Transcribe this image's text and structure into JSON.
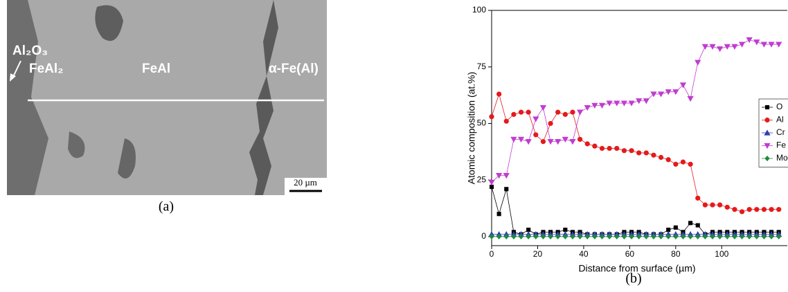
{
  "micrograph": {
    "labels": [
      "Al₂O₃",
      "FeAl₂",
      "FeAl",
      "α-Fe(Al)"
    ],
    "scale_bar": "20 µm",
    "caption": "(a)"
  },
  "chart_data": {
    "type": "line",
    "caption": "(b)",
    "x_label": "Distance from surface (µm)",
    "y_label": "Atomic composition (at.%)",
    "x": [
      0,
      3.2,
      6.4,
      9.6,
      12.8,
      16,
      19.2,
      22.4,
      25.6,
      28.8,
      32,
      35.2,
      38.4,
      41.6,
      44.8,
      48,
      51.2,
      54.4,
      57.6,
      60.8,
      64,
      67.2,
      70.4,
      73.6,
      76.8,
      80,
      83.2,
      86.4,
      89.6,
      92.8,
      96,
      99.2,
      102.4,
      105.6,
      108.8,
      112,
      115.2,
      118.4,
      121.6,
      124.8
    ],
    "series": [
      {
        "name": "O",
        "color": "#000000",
        "marker": "square",
        "values": [
          22,
          10,
          21,
          2,
          1,
          3,
          1,
          2,
          2,
          2,
          3,
          2,
          2,
          1,
          1,
          1,
          1,
          1,
          2,
          2,
          2,
          1,
          1,
          1,
          3,
          4,
          2,
          6,
          5,
          1,
          2,
          2,
          2,
          2,
          2,
          2,
          2,
          2,
          2,
          2
        ]
      },
      {
        "name": "Al",
        "color": "#e41a1c",
        "marker": "circle",
        "values": [
          53,
          63,
          51,
          54,
          55,
          55,
          45,
          42,
          50,
          55,
          54,
          55,
          43,
          41,
          40,
          39,
          39,
          39,
          38,
          38,
          37,
          37,
          36,
          35,
          34,
          32,
          33,
          32,
          17,
          14,
          14,
          14,
          13,
          12,
          11,
          12,
          12,
          12,
          12,
          12
        ]
      },
      {
        "name": "Cr",
        "color": "#2b3fb0",
        "marker": "triangle-up",
        "values": [
          1,
          1,
          1,
          1,
          1,
          1,
          1,
          1,
          1,
          1,
          1,
          1,
          1,
          1,
          1,
          1,
          1,
          1,
          1,
          1,
          1,
          1,
          1,
          1,
          1,
          1,
          1,
          1,
          1,
          1,
          1,
          1,
          1,
          1,
          1,
          1,
          1,
          1,
          1,
          1
        ]
      },
      {
        "name": "Fe",
        "color": "#c03ccf",
        "marker": "triangle-down",
        "values": [
          24,
          27,
          27,
          43,
          43,
          42,
          52,
          57,
          42,
          42,
          43,
          42,
          55,
          57,
          58,
          58,
          59,
          59,
          59,
          59,
          60,
          60,
          63,
          63,
          64,
          64,
          67,
          61,
          77,
          84,
          84,
          83,
          84,
          84,
          85,
          87,
          86,
          85,
          85,
          85
        ]
      },
      {
        "name": "Mo",
        "color": "#1f8a3a",
        "marker": "diamond",
        "values": [
          0,
          0,
          0,
          0,
          0,
          0,
          0,
          0,
          0,
          0,
          0,
          0,
          0,
          0,
          0,
          0,
          0,
          0,
          0,
          0,
          0,
          0,
          0,
          0,
          0,
          0,
          0,
          0,
          0,
          0,
          0,
          0,
          0,
          0,
          0,
          0,
          0,
          0,
          0,
          0
        ]
      }
    ],
    "xlim": [
      0,
      128.5
    ],
    "xticks": [
      0,
      20,
      40,
      60,
      80,
      100
    ],
    "ylim": [
      -4,
      100
    ],
    "yticks": [
      0,
      25,
      50,
      75,
      100
    ],
    "legend": "right"
  }
}
